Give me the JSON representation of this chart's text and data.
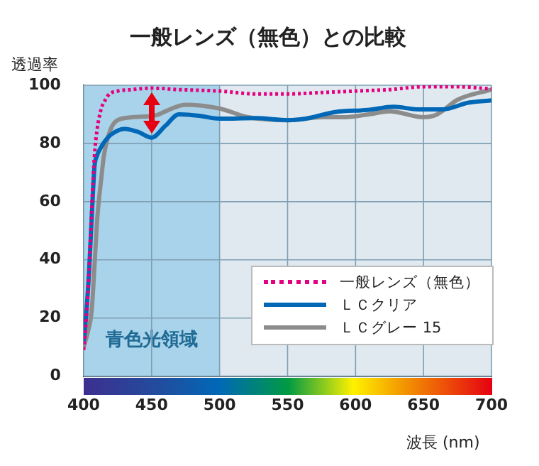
{
  "chart_data": {
    "type": "line",
    "title": "一般レンズ（無色）との比較",
    "xlabel": "波長 (nm)",
    "ylabel": "透過率",
    "xlim": [
      400,
      700
    ],
    "xticks": [
      400,
      450,
      500,
      550,
      600,
      650,
      700
    ],
    "ylim": [
      0,
      100
    ],
    "yticks": [
      0,
      20,
      40,
      60,
      80,
      100
    ],
    "grid": true,
    "legend": "bottom right",
    "marker": "none",
    "bands": [
      {
        "axis": "x",
        "from": 400,
        "to": 500,
        "label": "青色光領域",
        "color": "#a9d3ea"
      }
    ],
    "series": [
      {
        "name": "一般レンズ（無色）",
        "color": "#e5007f",
        "line_style": "dotted",
        "x": [
          400,
          402,
          404,
          406,
          408,
          410,
          413,
          416,
          419,
          425,
          435,
          450,
          470,
          500,
          527,
          550,
          575,
          600,
          625,
          650,
          675,
          700
        ],
        "values": [
          9,
          20,
          36,
          58,
          76,
          85,
          92,
          95,
          97,
          98,
          98.5,
          99,
          98.5,
          98,
          97,
          97,
          97.5,
          98,
          98.5,
          99.5,
          99.5,
          98.7
        ]
      },
      {
        "name": "ＬＣクリア",
        "color": "#0068b7",
        "line_style": "solid",
        "x": [
          400,
          402,
          404,
          406,
          408,
          410,
          412,
          416,
          420,
          430,
          440,
          450,
          460,
          470,
          485,
          500,
          527,
          550,
          562,
          585,
          609,
          628,
          646,
          664,
          683,
          700
        ],
        "values": [
          12,
          22,
          36,
          55,
          72,
          76,
          78,
          81,
          83,
          85,
          84,
          82,
          86,
          90,
          89.5,
          88.5,
          88.7,
          88,
          88.4,
          90.8,
          91.5,
          92.6,
          91.7,
          91.7,
          94,
          94.8
        ]
      },
      {
        "name": "ＬＣグレー 15",
        "color": "#8c8c8c",
        "line_style": "solid",
        "x": [
          400,
          403,
          406,
          408,
          410,
          413,
          415,
          420,
          425,
          436,
          454,
          460,
          475,
          500,
          521,
          550,
          575,
          590,
          610,
          625,
          650,
          660,
          675,
          700
        ],
        "values": [
          10,
          15,
          23,
          38,
          54,
          68,
          76,
          85,
          88,
          89,
          89.8,
          91,
          93.3,
          92,
          89,
          88,
          89,
          89,
          90,
          91,
          89,
          90,
          95,
          98.5
        ]
      }
    ]
  }
}
